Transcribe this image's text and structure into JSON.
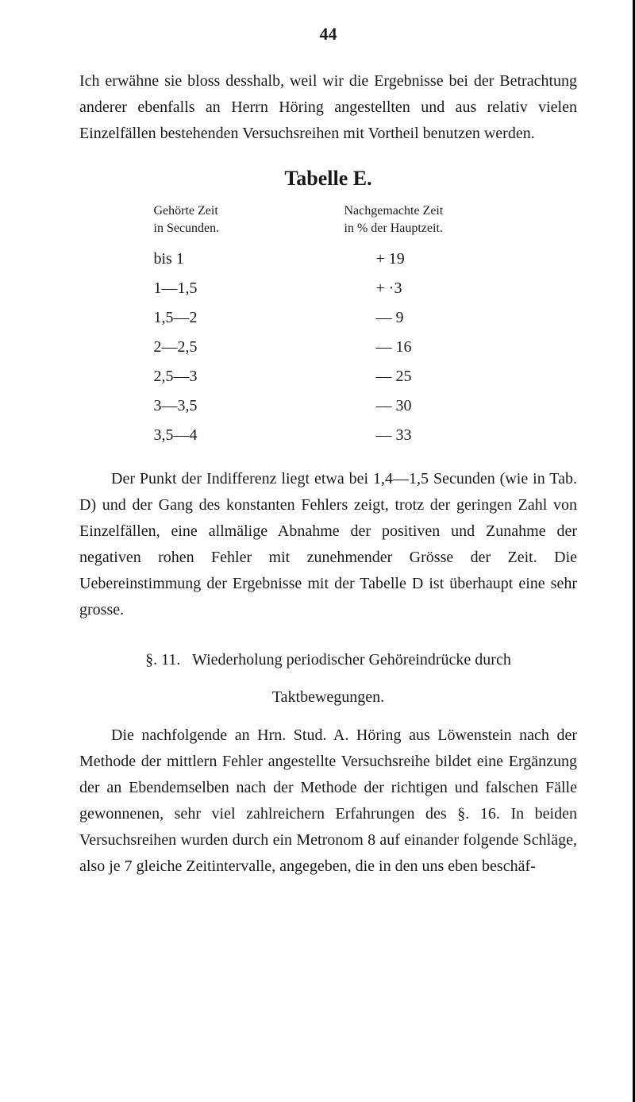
{
  "page_number": "44",
  "para1": "Ich erwähne sie bloss desshalb, weil wir die Ergebnisse bei der Betrachtung anderer ebenfalls an Herrn Höring angestellten und aus relativ vielen Einzelfällen bestehenden Versuchsreihen mit Vortheil benutzen werden.",
  "table": {
    "title": "Tabelle E.",
    "left_header": "Gehörte Zeit\nin Secunden.",
    "right_header": "Nachgemachte Zeit\nin % der Hauptzeit.",
    "rows": [
      {
        "left": "bis 1",
        "right": "+ 19"
      },
      {
        "left": "1—1,5",
        "right": "+ ·3"
      },
      {
        "left": "1,5—2",
        "right": "— 9"
      },
      {
        "left": "2—2,5",
        "right": "— 16"
      },
      {
        "left": "2,5—3",
        "right": "— 25"
      },
      {
        "left": "3—3,5",
        "right": "— 30"
      },
      {
        "left": "3,5—4",
        "right": "— 33"
      }
    ]
  },
  "para2": "Der Punkt der Indifferenz liegt etwa bei 1,4—1,5 Secunden (wie in Tab. D) und der Gang des konstanten Fehlers zeigt, trotz der geringen Zahl von Einzelfällen, eine allmälige Abnahme der positiven und Zunahme der negativen rohen Fehler mit zunehmender Grösse der Zeit. Die Uebereinstimmung der Ergebnisse mit der Tabelle D ist überhaupt eine sehr grosse.",
  "section": {
    "number": "§. 11.",
    "title": "Wiederholung periodischer Gehöreindrücke durch",
    "subtitle": "Taktbewegungen."
  },
  "para3": "Die nachfolgende an Hrn. Stud. A. Höring aus Löwenstein nach der Methode der mittlern Fehler angestellte Versuchsreihe bildet eine Ergänzung der an Ebendemselben nach der Methode der richtigen und falschen Fälle gewonnenen, sehr viel zahlreichern Erfahrungen des §. 16. In beiden Versuchsreihen wurden durch ein Metronom 8 auf einander folgende Schläge, also je 7 gleiche Zeitintervalle, angegeben, die in den uns eben beschäf-"
}
